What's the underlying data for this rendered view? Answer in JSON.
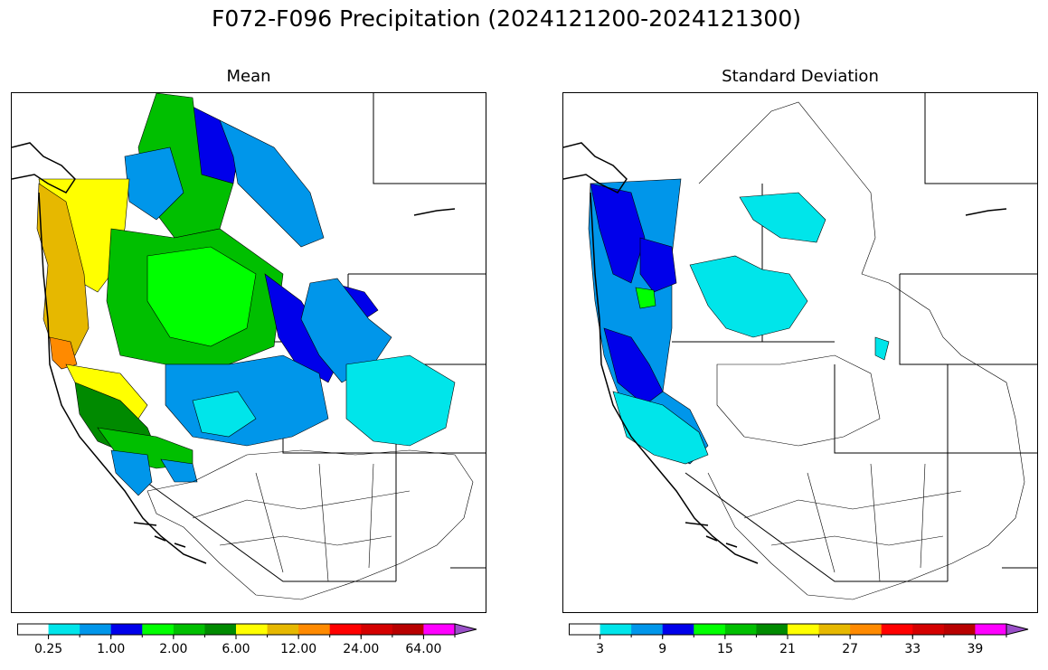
{
  "title": "F072-F096 Precipitation (2024121200-2024121300)",
  "panels": {
    "mean": {
      "title": "Mean",
      "colorbar": {
        "colors": [
          "#ffffff",
          "#00e5ea",
          "#0096ea",
          "#0000ea",
          "#00ff00",
          "#00bf00",
          "#008a00",
          "#ffff00",
          "#e6b800",
          "#ff8a00",
          "#ff0000",
          "#d40000",
          "#b80000",
          "#ff00ff",
          "#9a4fc8"
        ],
        "tick_labels": [
          "0.25",
          "1.00",
          "2.00",
          "6.00",
          "12.00",
          "24.00",
          "64.00"
        ],
        "extend": "max"
      }
    },
    "std": {
      "title": "Standard Deviation",
      "colorbar": {
        "colors": [
          "#ffffff",
          "#00e5ea",
          "#0096ea",
          "#0000ea",
          "#00ff00",
          "#00bf00",
          "#008a00",
          "#ffff00",
          "#e6b800",
          "#ff8a00",
          "#ff0000",
          "#d40000",
          "#b80000",
          "#ff00ff",
          "#9a4fc8"
        ],
        "tick_labels": [
          "3",
          "9",
          "15",
          "21",
          "27",
          "33",
          "39"
        ],
        "extend": "max"
      }
    }
  }
}
